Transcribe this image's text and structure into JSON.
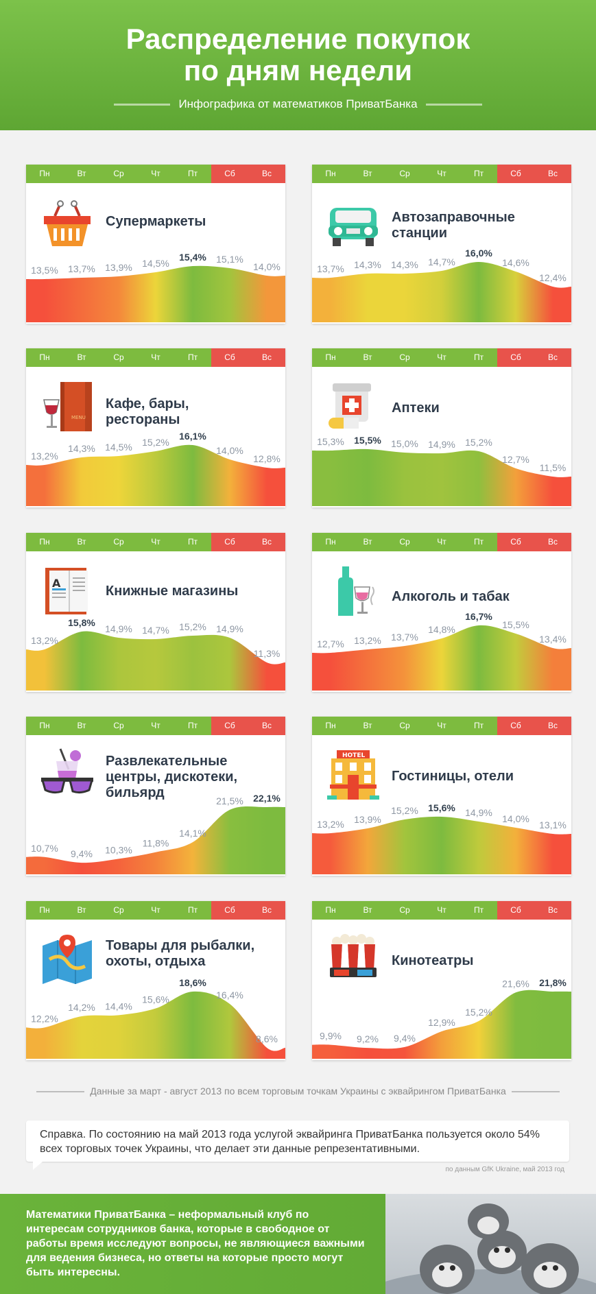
{
  "header": {
    "title_line1": "Распределение покупок",
    "title_line2": "по дням недели",
    "subtitle": "Инфографика от математиков ПриватБанка"
  },
  "days": [
    "Пн",
    "Вт",
    "Ср",
    "Чт",
    "Пт",
    "Сб",
    "Вс"
  ],
  "colors": {
    "green": "#7dbb3f",
    "red": "#e8534b",
    "yellow": "#f2d53a"
  },
  "chart_data": [
    {
      "type": "area",
      "title": "Супермаркеты",
      "icon": "basket-icon",
      "x": [
        "Пн",
        "Вт",
        "Ср",
        "Чт",
        "Пт",
        "Сб",
        "Вс"
      ],
      "values": [
        13.5,
        13.7,
        13.9,
        14.5,
        15.4,
        15.1,
        14.0
      ],
      "labels": [
        "13,5%",
        "13,7%",
        "13,9%",
        "14,5%",
        "15,4%",
        "15,1%",
        "14,0%"
      ],
      "max_index": 4
    },
    {
      "type": "area",
      "title": "Автозаправочные станции",
      "icon": "car-icon",
      "x": [
        "Пн",
        "Вт",
        "Ср",
        "Чт",
        "Пт",
        "Сб",
        "Вс"
      ],
      "values": [
        13.7,
        14.3,
        14.3,
        14.7,
        16.0,
        14.6,
        12.4
      ],
      "labels": [
        "13,7%",
        "14,3%",
        "14,3%",
        "14,7%",
        "16,0%",
        "14,6%",
        "12,4%"
      ],
      "max_index": 4
    },
    {
      "type": "area",
      "title": "Кафе, бары, рестораны",
      "icon": "menu-icon",
      "x": [
        "Пн",
        "Вт",
        "Ср",
        "Чт",
        "Пт",
        "Сб",
        "Вс"
      ],
      "values": [
        13.2,
        14.3,
        14.5,
        15.2,
        16.1,
        14.0,
        12.8
      ],
      "labels": [
        "13,2%",
        "14,3%",
        "14,5%",
        "15,2%",
        "16,1%",
        "14,0%",
        "12,8%"
      ],
      "max_index": 4
    },
    {
      "type": "area",
      "title": "Аптеки",
      "icon": "pharmacy-icon",
      "x": [
        "Пн",
        "Вт",
        "Ср",
        "Чт",
        "Пт",
        "Сб",
        "Вс"
      ],
      "values": [
        15.3,
        15.5,
        15.0,
        14.9,
        15.2,
        12.7,
        11.5
      ],
      "labels": [
        "15,3%",
        "15,5%",
        "15,0%",
        "14,9%",
        "15,2%",
        "12,7%",
        "11,5%"
      ],
      "max_index": 1
    },
    {
      "type": "area",
      "title": "Книжные магазины",
      "icon": "book-icon",
      "x": [
        "Пн",
        "Вт",
        "Ср",
        "Чт",
        "Пт",
        "Сб",
        "Вс"
      ],
      "values": [
        13.2,
        15.8,
        14.9,
        14.7,
        15.2,
        14.9,
        11.3
      ],
      "labels": [
        "13,2%",
        "15,8%",
        "14,9%",
        "14,7%",
        "15,2%",
        "14,9%",
        "11,3%"
      ],
      "max_index": 1
    },
    {
      "type": "area",
      "title": "Алкоголь и табак",
      "icon": "wine-icon",
      "x": [
        "Пн",
        "Вт",
        "Ср",
        "Чт",
        "Пт",
        "Сб",
        "Вс"
      ],
      "values": [
        12.7,
        13.2,
        13.7,
        14.8,
        16.7,
        15.5,
        13.4
      ],
      "labels": [
        "12,7%",
        "13,2%",
        "13,7%",
        "14,8%",
        "16,7%",
        "15,5%",
        "13,4%"
      ],
      "max_index": 4
    },
    {
      "type": "area",
      "title": "Развлекательные центры, дискотеки, бильярд",
      "icon": "sunglasses-icon",
      "x": [
        "Пн",
        "Вт",
        "Ср",
        "Чт",
        "Пт",
        "Сб",
        "Вс"
      ],
      "values": [
        10.7,
        9.4,
        10.3,
        11.8,
        14.1,
        21.5,
        22.1
      ],
      "labels": [
        "10,7%",
        "9,4%",
        "10,3%",
        "11,8%",
        "14,1%",
        "21,5%",
        "22,1%"
      ],
      "max_index": 6
    },
    {
      "type": "area",
      "title": "Гостиницы, отели",
      "icon": "hotel-icon",
      "x": [
        "Пн",
        "Вт",
        "Ср",
        "Чт",
        "Пт",
        "Сб",
        "Вс"
      ],
      "values": [
        13.2,
        13.9,
        15.2,
        15.6,
        14.9,
        14.0,
        13.1
      ],
      "labels": [
        "13,2%",
        "13,9%",
        "15,2%",
        "15,6%",
        "14,9%",
        "14,0%",
        "13,1%"
      ],
      "max_index": 3
    },
    {
      "type": "area",
      "title": "Товары для рыбалки, охоты, отдыха",
      "icon": "map-icon",
      "x": [
        "Пн",
        "Вт",
        "Ср",
        "Чт",
        "Пт",
        "Сб",
        "Вс"
      ],
      "values": [
        12.2,
        14.2,
        14.4,
        15.6,
        18.6,
        16.4,
        8.6
      ],
      "labels": [
        "12,2%",
        "14,2%",
        "14,4%",
        "15,6%",
        "18,6%",
        "16,4%",
        "8,6%"
      ],
      "max_index": 4
    },
    {
      "type": "area",
      "title": "Кинотеатры",
      "icon": "popcorn-icon",
      "x": [
        "Пн",
        "Вт",
        "Ср",
        "Чт",
        "Пт",
        "Сб",
        "Вс"
      ],
      "values": [
        9.9,
        9.2,
        9.4,
        12.9,
        15.2,
        21.6,
        21.8
      ],
      "labels": [
        "9,9%",
        "9,2%",
        "9,4%",
        "12,9%",
        "15,2%",
        "21,6%",
        "21,8%"
      ],
      "max_index": 6
    }
  ],
  "note": "Данные за март - август 2013 по всем торговым точкам Украины с эквайрингом ПриватБанка",
  "reference": "Справка. По состоянию на май 2013 года услугой эквайринга ПриватБанка пользуется около 54% всех торговых точек Украины, что делает эти данные репрезентативными.",
  "reference_source": "по данным GfK Ukraine, май 2013 год",
  "footer": "Математики ПриватБанка – неформальный клуб по интересам сотрудников банка, которые в свободное от работы время исследуют вопросы, не являющиеся важными для ведения бизнеса, но ответы на которые просто могут быть интересны."
}
